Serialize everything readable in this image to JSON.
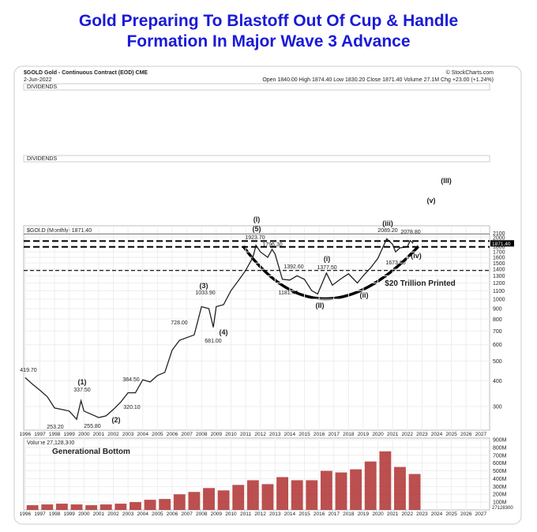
{
  "page_title": [
    "Gold Preparing To Blastoff Out Of Cup & Handle",
    "Formation In Major Wave 3 Advance"
  ],
  "header": {
    "symbol": "$GOLD Gold - Continuous Contract (EOD) CME",
    "source": "© StockCharts.com",
    "date": "2-Jun-2022",
    "quote": "Open 1840.00  High 1874.40  Low 1830.20  Close 1871.40  Volume 27.1M  Chg +23.00 (+1.24%)",
    "dividends": [
      "DIVIDENDS",
      "DIVIDENDS"
    ]
  },
  "chart_data": [
    {
      "type": "line",
      "title": "$GOLD (Monthly) 1871.40",
      "log_scale": true,
      "grid": true,
      "color": "#222222",
      "x": [
        1996.0,
        1996.5,
        1997.0,
        1997.5,
        1998.0,
        1998.5,
        1999.0,
        1999.5,
        1999.8,
        2000.0,
        2000.5,
        2001.0,
        2001.5,
        2002.0,
        2002.5,
        2003.0,
        2003.5,
        2004.0,
        2004.5,
        2005.0,
        2005.5,
        2006.0,
        2006.5,
        2007.0,
        2007.5,
        2008.0,
        2008.5,
        2008.8,
        2009.0,
        2009.5,
        2010.0,
        2010.5,
        2011.0,
        2011.5,
        2011.7,
        2012.0,
        2012.5,
        2012.8,
        2013.0,
        2013.5,
        2014.0,
        2014.5,
        2015.0,
        2015.5,
        2015.9,
        2016.5,
        2016.9,
        2017.5,
        2018.0,
        2018.6,
        2019.0,
        2019.5,
        2020.0,
        2020.6,
        2021.0,
        2021.2,
        2021.5,
        2022.0,
        2022.2,
        2022.4
      ],
      "values": [
        415,
        385,
        360,
        335,
        295,
        290,
        285,
        260,
        320,
        285,
        275,
        265,
        270,
        290,
        315,
        350,
        350,
        405,
        395,
        425,
        440,
        565,
        630,
        650,
        670,
        920,
        900,
        730,
        920,
        940,
        1100,
        1230,
        1380,
        1600,
        1830,
        1700,
        1600,
        1750,
        1660,
        1250,
        1240,
        1300,
        1250,
        1100,
        1060,
        1340,
        1170,
        1260,
        1330,
        1200,
        1300,
        1420,
        1580,
        1970,
        1850,
        1700,
        1780,
        1800,
        1930,
        1871
      ],
      "xlim": [
        1995.9,
        2027.6
      ],
      "xticks": [
        1996,
        1997,
        1998,
        1999,
        2000,
        2001,
        2002,
        2003,
        2004,
        2005,
        2006,
        2007,
        2008,
        2009,
        2010,
        2011,
        2012,
        2013,
        2014,
        2015,
        2016,
        2017,
        2018,
        2019,
        2020,
        2021,
        2022,
        2023,
        2024,
        2025,
        2026,
        2027
      ],
      "ylim": [
        230,
        2280
      ],
      "yticks": [
        300,
        400,
        500,
        600,
        700,
        800,
        900,
        1000,
        1100,
        1200,
        1300,
        1400,
        1500,
        1600,
        1700,
        1800,
        2000,
        2100
      ],
      "reference_lines": [
        2080,
        1920,
        1800,
        1380
      ],
      "last_value_label": "1871.40",
      "annotations": [
        "(I)",
        "(5)",
        "1923.70",
        "1796.30",
        "1392.60",
        "(i)",
        "1377.50",
        "1181.40",
        "(II)",
        "(ii)",
        "(iii)",
        "2089.20",
        "2078.80",
        "1673.80",
        "(iv)",
        "(v)",
        "(III)",
        "(3)",
        "1033.90",
        "(4)",
        "681.00",
        "728.00",
        "(1)",
        "337.50",
        "384.50",
        "320.10",
        "(2)",
        "253.20",
        "255.80",
        "419.70",
        "$20 Trillion Printed"
      ]
    },
    {
      "type": "bar",
      "title": "Volume 27,128,300",
      "color": "#b03030",
      "grid": true,
      "x": [
        1996,
        1997,
        1998,
        1999,
        2000,
        2001,
        2002,
        2003,
        2004,
        2005,
        2006,
        2007,
        2008,
        2009,
        2010,
        2011,
        2012,
        2013,
        2014,
        2015,
        2016,
        2017,
        2018,
        2019,
        2020,
        2021,
        2022
      ],
      "values": [
        60000000,
        70000000,
        80000000,
        70000000,
        60000000,
        70000000,
        80000000,
        100000000,
        130000000,
        140000000,
        200000000,
        230000000,
        280000000,
        250000000,
        320000000,
        380000000,
        330000000,
        420000000,
        380000000,
        380000000,
        500000000,
        480000000,
        520000000,
        620000000,
        750000000,
        550000000,
        460000000
      ],
      "xlim": [
        1995.9,
        2027.6
      ],
      "xticks": [
        1996,
        1997,
        1998,
        1999,
        2000,
        2001,
        2002,
        2003,
        2004,
        2005,
        2006,
        2007,
        2008,
        2009,
        2010,
        2011,
        2012,
        2013,
        2014,
        2015,
        2016,
        2017,
        2018,
        2019,
        2020,
        2021,
        2022,
        2023,
        2024,
        2025,
        2026,
        2027
      ],
      "ylim": [
        0,
        920000000
      ],
      "yticks": [
        {
          "value": 100000000,
          "label": "100M"
        },
        {
          "value": 200000000,
          "label": "200M"
        },
        {
          "value": 300000000,
          "label": "300M"
        },
        {
          "value": 400000000,
          "label": "400M"
        },
        {
          "value": 500000000,
          "label": "500M"
        },
        {
          "value": 600000000,
          "label": "600M"
        },
        {
          "value": 700000000,
          "label": "700M"
        },
        {
          "value": 800000000,
          "label": "800M"
        },
        {
          "value": 900000000,
          "label": "900M"
        }
      ],
      "last_value_label": "27128300",
      "annotations": [
        "Generational Bottom"
      ]
    }
  ]
}
